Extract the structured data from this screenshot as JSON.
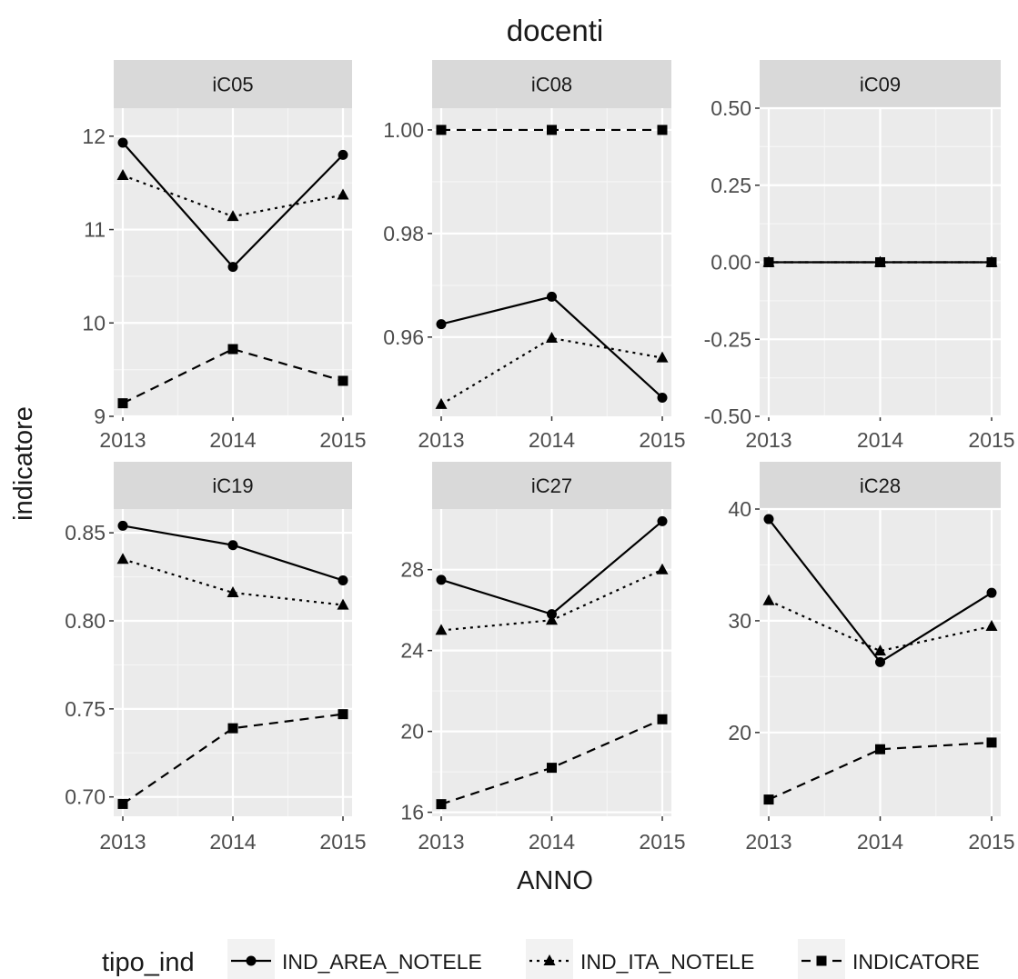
{
  "chart_data": {
    "type": "line",
    "title": "docenti",
    "xlabel": "ANNO",
    "ylabel": "indicatore",
    "x": [
      "2013",
      "2014",
      "2015"
    ],
    "legend": {
      "title": "tipo_ind",
      "position": "bottom",
      "entries": [
        {
          "name": "IND_AREA_NOTELE",
          "marker": "circle",
          "linetype": "solid"
        },
        {
          "name": "IND_ITA_NOTELE",
          "marker": "triangle",
          "linetype": "dotted"
        },
        {
          "name": "INDICATORE",
          "marker": "square",
          "linetype": "dashed"
        }
      ]
    },
    "grid": true,
    "panels": [
      {
        "label": "iC05",
        "ylim": [
          9,
          12.3
        ],
        "yticks": [
          9,
          10,
          11,
          12
        ],
        "ytick_labels": [
          "9",
          "10",
          "11",
          "12"
        ],
        "series": [
          {
            "name": "IND_AREA_NOTELE",
            "values": [
              11.93,
              10.6,
              11.8
            ]
          },
          {
            "name": "IND_ITA_NOTELE",
            "values": [
              11.58,
              11.14,
              11.37
            ]
          },
          {
            "name": "INDICATORE",
            "values": [
              9.14,
              9.72,
              9.38
            ]
          }
        ]
      },
      {
        "label": "iC08",
        "ylim": [
          0.9447,
          1.0042
        ],
        "yticks": [
          0.96,
          0.98,
          1.0
        ],
        "ytick_labels": [
          "0.96",
          "0.98",
          "1.00"
        ],
        "series": [
          {
            "name": "IND_AREA_NOTELE",
            "values": [
              0.9625,
              0.9678,
              0.9483
            ]
          },
          {
            "name": "IND_ITA_NOTELE",
            "values": [
              0.947,
              0.9598,
              0.956
            ]
          },
          {
            "name": "INDICATORE",
            "values": [
              1.0,
              1.0,
              1.0
            ]
          }
        ]
      },
      {
        "label": "iC09",
        "ylim": [
          -0.5,
          0.5
        ],
        "yticks": [
          -0.5,
          -0.25,
          0.0,
          0.25,
          0.5
        ],
        "ytick_labels": [
          "-0.50",
          "-0.25",
          "0.00",
          "0.25",
          "0.50"
        ],
        "series": [
          {
            "name": "IND_AREA_NOTELE",
            "values": [
              0,
              0,
              0
            ]
          },
          {
            "name": "IND_ITA_NOTELE",
            "values": [
              0,
              0,
              0
            ]
          },
          {
            "name": "INDICATORE",
            "values": [
              0,
              0,
              0
            ]
          }
        ]
      },
      {
        "label": "iC19",
        "ylim": [
          0.689,
          0.8635
        ],
        "yticks": [
          0.7,
          0.75,
          0.8,
          0.85
        ],
        "ytick_labels": [
          "0.70",
          "0.75",
          "0.80",
          "0.85"
        ],
        "series": [
          {
            "name": "IND_AREA_NOTELE",
            "values": [
              0.854,
              0.843,
              0.823
            ]
          },
          {
            "name": "IND_ITA_NOTELE",
            "values": [
              0.835,
              0.816,
              0.809
            ]
          },
          {
            "name": "INDICATORE",
            "values": [
              0.696,
              0.739,
              0.747
            ]
          }
        ]
      },
      {
        "label": "iC27",
        "ylim": [
          15.8,
          31.0
        ],
        "yticks": [
          16,
          20,
          24,
          28
        ],
        "ytick_labels": [
          "16",
          "20",
          "24",
          "28"
        ],
        "series": [
          {
            "name": "IND_AREA_NOTELE",
            "values": [
              27.5,
              25.8,
              30.4
            ]
          },
          {
            "name": "IND_ITA_NOTELE",
            "values": [
              25.0,
              25.5,
              28.0
            ]
          },
          {
            "name": "INDICATORE",
            "values": [
              16.4,
              18.2,
              20.6
            ]
          }
        ]
      },
      {
        "label": "iC28",
        "ylim": [
          12.5,
          40.0
        ],
        "yticks": [
          20,
          30,
          40
        ],
        "ytick_labels": [
          "20",
          "30",
          "40"
        ],
        "series": [
          {
            "name": "IND_AREA_NOTELE",
            "values": [
              39.1,
              26.3,
              32.5
            ]
          },
          {
            "name": "IND_ITA_NOTELE",
            "values": [
              31.8,
              27.3,
              29.5
            ]
          },
          {
            "name": "INDICATORE",
            "values": [
              14.0,
              18.5,
              19.1
            ]
          }
        ]
      }
    ]
  }
}
